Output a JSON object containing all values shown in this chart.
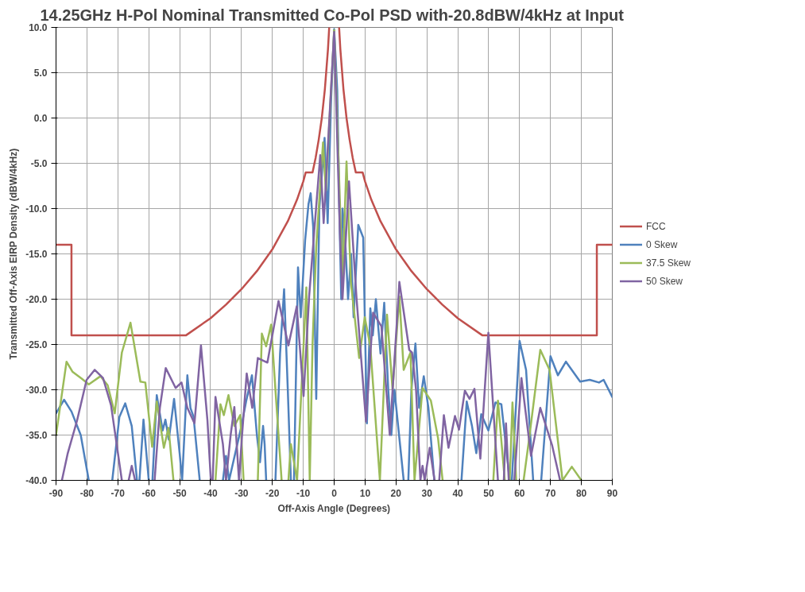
{
  "chart_data": {
    "type": "line",
    "title": "14.25GHz H-Pol Nominal Transmitted Co-Pol PSD with-20.8dBW/4kHz  at Input",
    "xlabel": "Off-Axis Angle (Degrees)",
    "ylabel": "Transmitted Off-Axis EIRP Density (dBW/4kHz)",
    "xlim": [
      -90,
      90
    ],
    "xticks": [
      -90,
      -80,
      -70,
      -60,
      -50,
      -40,
      -30,
      -20,
      -10,
      0,
      10,
      20,
      30,
      40,
      50,
      60,
      70,
      80,
      90
    ],
    "ylim": [
      -40,
      10
    ],
    "yticks": [
      {
        "value": -40,
        "label": "-40.0"
      },
      {
        "value": -35,
        "label": "-35.0"
      },
      {
        "value": -30,
        "label": "-30.0"
      },
      {
        "value": -25,
        "label": "-25.0"
      },
      {
        "value": -20,
        "label": "-20.0"
      },
      {
        "value": -15,
        "label": "-15.0"
      },
      {
        "value": -10,
        "label": "-10.0"
      },
      {
        "value": -5,
        "label": "-5.0"
      },
      {
        "value": 0,
        "label": "0.0"
      },
      {
        "value": 5,
        "label": "5.0"
      },
      {
        "value": 10,
        "label": "10.0"
      }
    ],
    "grid": true,
    "legend": "right",
    "marker": "none",
    "line_style": "solid",
    "series": [
      {
        "name": "FCC",
        "color": "#c0504d",
        "x": [
          -90,
          -85,
          -85,
          -48,
          -40,
          -35,
          -30,
          -25,
          -20,
          -15,
          -12,
          -10,
          -9.2,
          -7,
          -6,
          -5,
          -4,
          -3,
          -2,
          -1.6,
          0,
          1.6,
          2,
          3,
          4,
          5,
          6,
          7,
          9.2,
          10,
          12,
          15,
          20,
          25,
          30,
          35,
          40,
          48,
          85,
          85,
          90
        ],
        "values": [
          -14,
          -14,
          -24,
          -24,
          -22.1,
          -20.6,
          -18.9,
          -16.9,
          -14.5,
          -11.4,
          -9,
          -7,
          -6,
          -6,
          -4.4,
          -2.4,
          0.0,
          3.2,
          7.6,
          10,
          null,
          10,
          7.6,
          3.2,
          0.0,
          -2.4,
          -4.4,
          -6,
          -6,
          -7,
          -9,
          -11.4,
          -14.5,
          -16.9,
          -18.9,
          -20.6,
          -22.1,
          -24,
          -24,
          -14,
          -14
        ]
      },
      {
        "name": "0 Skew",
        "color": "#4f81bd",
        "x": [
          -90,
          -87.4,
          -85,
          -82,
          -79.4,
          -75,
          -71.8,
          -69.5,
          -67.6,
          -65.5,
          -63.8,
          -63.4,
          -63,
          -61.7,
          -60,
          -59.4,
          -58.8,
          -57.4,
          -55.5,
          -54.6,
          -53.5,
          -51.8,
          -50,
          -49.2,
          -47.5,
          -46.5,
          -45.5,
          -43.5,
          -40,
          -36,
          -35,
          -34,
          -30,
          -28.5,
          -26.6,
          -25,
          -24,
          -23,
          -22.5,
          -22,
          -21.5,
          -19,
          -17.5,
          -16.2,
          -15,
          -14,
          -13.5,
          -13,
          -11.7,
          -10.8,
          -9.4,
          -8.3,
          -7.6,
          -6.8,
          -5.8,
          -4.8,
          -3.1,
          -2.1,
          -1,
          0,
          1,
          1.8,
          2.3,
          2.7,
          3.5,
          4.5,
          5.5,
          6.3,
          7.8,
          9.4,
          10.6,
          11.7,
          12.5,
          13.5,
          15,
          16.2,
          17.5,
          18.5,
          19.5,
          21,
          22.5,
          23.2,
          24,
          25,
          26.3,
          27.5,
          29,
          30.5,
          32.4,
          36,
          41.2,
          42.9,
          44.6,
          46,
          47.6,
          49.9,
          52.2,
          54.1,
          56.8,
          57.2,
          57.5,
          60,
          62.1,
          64.4,
          65.7,
          67,
          70,
          72.4,
          75,
          79.6,
          82.7,
          85.7,
          87.2,
          90
        ],
        "values": [
          -32.6,
          -31.1,
          -32.4,
          -35,
          -40,
          null,
          -40,
          -33,
          -31.5,
          -34,
          -40,
          null,
          -40,
          -33.3,
          -40,
          null,
          -40,
          -30.6,
          -34.5,
          -33.3,
          -35.5,
          -31,
          -37,
          -40,
          -28.4,
          -32,
          -33,
          -40,
          null,
          -40,
          -37.3,
          -40,
          -34,
          -31.3,
          -28.4,
          -35,
          -38,
          -34,
          -36,
          -40,
          null,
          -40,
          -26,
          -18.9,
          -30,
          -40,
          null,
          -40,
          -16.5,
          -22,
          -13.5,
          -9.5,
          -8.3,
          -12,
          -31,
          -10,
          -2.2,
          -11.6,
          2,
          9.8,
          3,
          -12.2,
          -20,
          -10,
          -13,
          -20,
          -15,
          -22,
          -11.8,
          -13.2,
          -33.7,
          -21,
          -24,
          -20,
          -26,
          -20.4,
          -30,
          -35,
          -30,
          -35,
          -40,
          null,
          -40,
          -30,
          -24.9,
          -32,
          -28.5,
          -32,
          -40,
          null,
          -40,
          -31.3,
          -34,
          -37,
          -32.7,
          -34.5,
          -31.4,
          -31.6,
          -40,
          null,
          -40,
          -24.6,
          -27.8,
          -40,
          null,
          -40,
          -26.3,
          -28.4,
          -26.9,
          -29.1,
          -28.9,
          -29.2,
          -28.9,
          -30.8
        ]
      },
      {
        "name": "37.5 Skew",
        "color": "#9bbb59",
        "x": [
          -90,
          -86.6,
          -84.7,
          -81.6,
          -79.4,
          -75.6,
          -73.3,
          -71,
          -68.7,
          -65.9,
          -62.7,
          -61.1,
          -58.9,
          -57.4,
          -55.1,
          -53.6,
          -52,
          -45,
          -38.4,
          -36.8,
          -35.7,
          -34.2,
          -32.3,
          -30.4,
          -29.3,
          -27,
          -24.7,
          -23.4,
          -22,
          -20.4,
          -19.3,
          -17,
          -15.5,
          -14.8,
          -14,
          -12,
          -9,
          -7.9,
          -7,
          -5.8,
          -3.6,
          -2.7,
          0,
          2.7,
          4,
          5.4,
          8.1,
          9.9,
          11.7,
          14.8,
          17.1,
          18.9,
          21.1,
          22.5,
          24.7,
          26,
          28.6,
          31.3,
          33.6,
          35.1,
          40,
          51.5,
          53,
          55.2,
          56.1,
          56.8,
          57.7,
          58.9,
          60.2,
          61.3,
          62.9,
          66.7,
          69.7,
          73.9,
          76.9,
          80
        ],
        "values": [
          -35,
          -26.9,
          -28,
          -28.8,
          -29.4,
          -28.5,
          -29.5,
          -32.6,
          -25.9,
          -22.6,
          -29.1,
          -29.2,
          -36.3,
          -31.3,
          -36.4,
          -34.2,
          -40,
          null,
          -40,
          -31.6,
          -32.8,
          -30.6,
          -34,
          -32.8,
          -40,
          null,
          -40,
          -23.8,
          -25.2,
          -22.8,
          -28.5,
          -40,
          null,
          -40,
          -36,
          -40,
          -18.7,
          -40,
          -25,
          -14.2,
          -2.7,
          -8,
          9.7,
          -17.8,
          -4.8,
          -18.1,
          -26.5,
          -22,
          -25.2,
          -40,
          -21.7,
          -30,
          -19.7,
          -27.8,
          -25.9,
          -40,
          -29.8,
          -31.2,
          -35.3,
          -40,
          null,
          -40,
          -31.2,
          -40,
          null,
          -40,
          -31.4,
          -40,
          null,
          -40,
          -35.9,
          -25.6,
          -27.8,
          -40,
          -38.5,
          -40
        ]
      },
      {
        "name": "50 Skew",
        "color": "#8064a2",
        "x": [
          -88.1,
          -86.2,
          -83.2,
          -80.1,
          -77.5,
          -74.8,
          -72.2,
          -68.7,
          -67.6,
          -66.5,
          -65.5,
          -64.4,
          -61,
          -58.1,
          -56.4,
          -54.5,
          -51.3,
          -49.4,
          -47.5,
          -45.2,
          -43.1,
          -41,
          -39.9,
          -39.6,
          -39.3,
          -38.4,
          -36,
          -35,
          -33.5,
          -32.3,
          -30.8,
          -29.8,
          -28.3,
          -26.5,
          -24.7,
          -21.6,
          -18,
          -14.8,
          -12.1,
          -9.9,
          -8.1,
          -4.5,
          -3.4,
          0,
          1.8,
          2.7,
          4.8,
          7.2,
          10.3,
          12.6,
          15.3,
          18,
          21.1,
          24.3,
          25.2,
          26.5,
          27.9,
          28.6,
          29.3,
          30.9,
          32.5,
          33.2,
          34,
          35.5,
          37,
          39.1,
          40.4,
          42.3,
          43.8,
          45.4,
          47.3,
          49.9,
          53,
          54,
          54.9,
          55.6,
          56.5,
          57.4,
          58.3,
          60.6,
          63.7,
          66.7,
          70.5,
          73.1
        ],
        "values": [
          -40,
          -37,
          -33.4,
          -28.9,
          -27.8,
          -28.7,
          -31.7,
          -40,
          null,
          -40,
          -38.4,
          -40,
          null,
          -40,
          -32,
          -27.6,
          -29.8,
          -29.2,
          -32,
          -33.7,
          -25.1,
          -33.4,
          -40,
          null,
          -40,
          -30.8,
          -36,
          -40,
          -35,
          -31.9,
          -40,
          -35,
          -28.2,
          -32,
          -26.5,
          -27,
          -20.2,
          -25.1,
          -20.8,
          -30.7,
          -19.7,
          -4.1,
          -11.6,
          9.5,
          -12,
          -20,
          -7,
          -19.7,
          -33.5,
          -21.5,
          -23,
          -35,
          -18.1,
          -25.6,
          -25.9,
          -30,
          -40,
          -38.4,
          -40,
          -36.4,
          -40,
          null,
          -40,
          -32.8,
          -36.4,
          -32.9,
          -34.4,
          -30.1,
          -31,
          -29.9,
          -37.6,
          -23.7,
          -40,
          null,
          -40,
          -33.7,
          -40,
          null,
          -40,
          -28.7,
          -37.3,
          -32,
          -36.1,
          -40
        ]
      }
    ]
  }
}
